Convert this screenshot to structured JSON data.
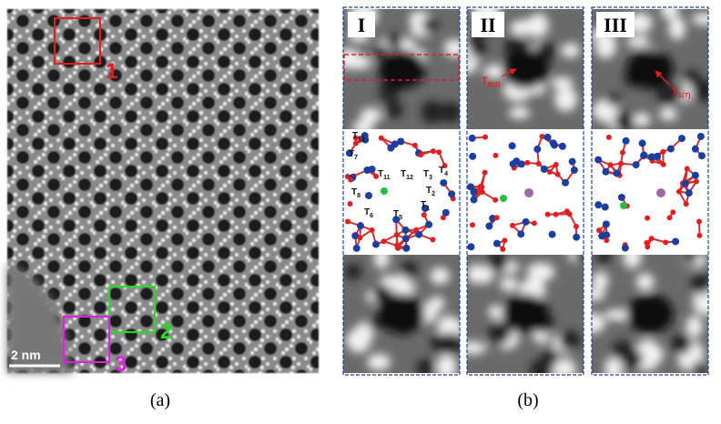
{
  "panel_a": {
    "markers": [
      {
        "label": "1",
        "color": "#e02020"
      },
      {
        "label": "2",
        "color": "#22dd22"
      },
      {
        "label": "3",
        "color": "#e020e0"
      }
    ],
    "scale_bar": "2 nm",
    "caption": "(a)"
  },
  "panel_b": {
    "columns": [
      {
        "label": "I",
        "annotation": null
      },
      {
        "label": "II",
        "annotation": {
          "base": "T",
          "sub": "8(2)"
        }
      },
      {
        "label": "III",
        "annotation": {
          "base": "T",
          "sub": "1(7)"
        }
      }
    ],
    "framework_labels": [
      {
        "base": "T",
        "sub": "10"
      },
      {
        "base": "T",
        "sub": "7"
      },
      {
        "base": "T",
        "sub": "11"
      },
      {
        "base": "T",
        "sub": "12"
      },
      {
        "base": "T",
        "sub": "3"
      },
      {
        "base": "T",
        "sub": "4"
      },
      {
        "base": "T",
        "sub": "8"
      },
      {
        "base": "T",
        "sub": "2"
      },
      {
        "base": "T",
        "sub": "6"
      },
      {
        "base": "T",
        "sub": "1"
      },
      {
        "base": "T",
        "sub": "5"
      }
    ],
    "caption": "(b)"
  }
}
